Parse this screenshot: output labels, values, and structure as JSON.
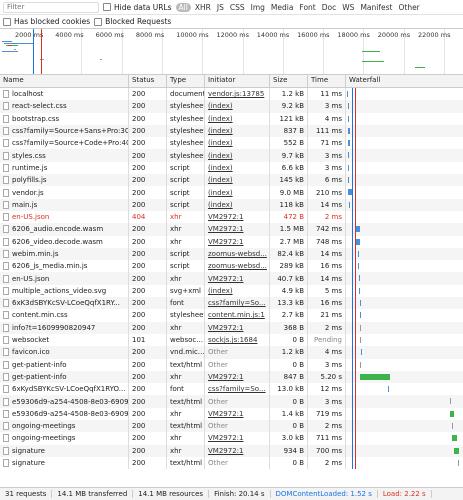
{
  "filter": {
    "placeholder": "Filter",
    "hide_data_urls": "Hide data URLs",
    "types": [
      "All",
      "XHR",
      "JS",
      "CSS",
      "Img",
      "Media",
      "Font",
      "Doc",
      "WS",
      "Manifest",
      "Other"
    ],
    "has_blocked_cookies": "Has blocked cookies",
    "blocked_requests": "Blocked Requests"
  },
  "overview": {
    "ticks": [
      "2000 ms",
      "4000 ms",
      "6000 ms",
      "8000 ms",
      "10000 ms",
      "12000 ms",
      "14000 ms",
      "16000 ms",
      "18000 ms",
      "20000 ms",
      "22000 ms"
    ]
  },
  "columns": {
    "name": "Name",
    "status": "Status",
    "type": "Type",
    "initiator": "Initiator",
    "size": "Size",
    "time": "Time",
    "waterfall": "Waterfall"
  },
  "requests": [
    {
      "name": "localhost",
      "status": "200",
      "type": "document",
      "initiator": "vendor.js:13785",
      "size": "1.2 kB",
      "time": "11 ms"
    },
    {
      "name": "react-select.css",
      "status": "200",
      "type": "stylesheet",
      "initiator": "(index)",
      "size": "9.2 kB",
      "time": "3 ms"
    },
    {
      "name": "bootstrap.css",
      "status": "200",
      "type": "stylesheet",
      "initiator": "(index)",
      "size": "121 kB",
      "time": "4 ms"
    },
    {
      "name": "css?family=Source+Sans+Pro:30...",
      "status": "200",
      "type": "stylesheet",
      "initiator": "(index)",
      "size": "837 B",
      "time": "111 ms"
    },
    {
      "name": "css?family=Source+Code+Pro:400",
      "status": "200",
      "type": "stylesheet",
      "initiator": "(index)",
      "size": "552 B",
      "time": "71 ms"
    },
    {
      "name": "styles.css",
      "status": "200",
      "type": "stylesheet",
      "initiator": "(index)",
      "size": "9.7 kB",
      "time": "3 ms"
    },
    {
      "name": "runtime.js",
      "status": "200",
      "type": "script",
      "initiator": "(index)",
      "size": "6.6 kB",
      "time": "3 ms"
    },
    {
      "name": "polyfills.js",
      "status": "200",
      "type": "script",
      "initiator": "(index)",
      "size": "145 kB",
      "time": "6 ms"
    },
    {
      "name": "vendor.js",
      "status": "200",
      "type": "script",
      "initiator": "(index)",
      "size": "9.0 MB",
      "time": "210 ms"
    },
    {
      "name": "main.js",
      "status": "200",
      "type": "script",
      "initiator": "(index)",
      "size": "118 kB",
      "time": "14 ms"
    },
    {
      "name": "en-US.json",
      "status": "404",
      "type": "xhr",
      "initiator": "VM2972:1",
      "size": "472 B",
      "time": "2 ms",
      "error": true
    },
    {
      "name": "6206_audio.encode.wasm",
      "status": "200",
      "type": "xhr",
      "initiator": "VM2972:1",
      "size": "1.5 MB",
      "time": "742 ms"
    },
    {
      "name": "6206_video.decode.wasm",
      "status": "200",
      "type": "xhr",
      "initiator": "VM2972:1",
      "size": "2.7 MB",
      "time": "748 ms"
    },
    {
      "name": "webim.min.js",
      "status": "200",
      "type": "script",
      "initiator": "zoomus-websd...",
      "size": "82.4 kB",
      "time": "14 ms"
    },
    {
      "name": "6206_js_media.min.js",
      "status": "200",
      "type": "script",
      "initiator": "zoomus-websd...",
      "size": "289 kB",
      "time": "16 ms"
    },
    {
      "name": "en-US.json",
      "status": "200",
      "type": "xhr",
      "initiator": "VM2972:1",
      "size": "40.7 kB",
      "time": "14 ms"
    },
    {
      "name": "multiple_actions_video.svg",
      "status": "200",
      "type": "svg+xml",
      "initiator": "(index)",
      "size": "4.9 kB",
      "time": "5 ms"
    },
    {
      "name": "6xK3dSBYKcSV-LCoeQqfX1RY...",
      "status": "200",
      "type": "font",
      "initiator": "css?family=So...",
      "size": "13.3 kB",
      "time": "16 ms"
    },
    {
      "name": "content.min.css",
      "status": "200",
      "type": "stylesheet",
      "initiator": "content.min.js:1",
      "size": "2.7 kB",
      "time": "21 ms"
    },
    {
      "name": "info?t=1609990820947",
      "status": "200",
      "type": "xhr",
      "initiator": "VM2972:1",
      "size": "368 B",
      "time": "2 ms"
    },
    {
      "name": "websocket",
      "status": "101",
      "type": "websoc...",
      "initiator": "sockjs.js:1684",
      "size": "0 B",
      "time": "Pending"
    },
    {
      "name": "favicon.ico",
      "status": "200",
      "type": "vnd.mic...",
      "initiator": "Other",
      "size": "1.2 kB",
      "time": "4 ms"
    },
    {
      "name": "get-patient-info",
      "status": "200",
      "type": "text/html",
      "initiator": "Other",
      "size": "0 B",
      "time": "3 ms"
    },
    {
      "name": "get-patient-info",
      "status": "200",
      "type": "xhr",
      "initiator": "VM2972:1",
      "size": "847 B",
      "time": "5.20 s"
    },
    {
      "name": "6xKydSBYKcSV-LCoeQqfX1RYO...",
      "status": "200",
      "type": "font",
      "initiator": "css?family=So...",
      "size": "13.0 kB",
      "time": "12 ms"
    },
    {
      "name": "e59306d9-a254-4508-8e03-6909...",
      "status": "200",
      "type": "text/html",
      "initiator": "Other",
      "size": "0 B",
      "time": "3 ms"
    },
    {
      "name": "e59306d9-a254-4508-8e03-6909...",
      "status": "200",
      "type": "xhr",
      "initiator": "VM2972:1",
      "size": "1.4 kB",
      "time": "719 ms"
    },
    {
      "name": "ongoing-meetings",
      "status": "200",
      "type": "text/html",
      "initiator": "Other",
      "size": "0 B",
      "time": "2 ms"
    },
    {
      "name": "ongoing-meetings",
      "status": "200",
      "type": "xhr",
      "initiator": "VM2972:1",
      "size": "3.0 kB",
      "time": "711 ms"
    },
    {
      "name": "signature",
      "status": "200",
      "type": "xhr",
      "initiator": "VM2972:1",
      "size": "934 B",
      "time": "700 ms"
    },
    {
      "name": "signature",
      "status": "200",
      "type": "text/html",
      "initiator": "Other",
      "size": "0 B",
      "time": "2 ms"
    }
  ],
  "summary": {
    "requests": "31 requests",
    "transferred": "14.1 MB transferred",
    "resources": "14.1 MB resources",
    "finish": "Finish: 20.14 s",
    "dcl": "DOMContentLoaded: 1.52 s",
    "load": "Load: 2.22 s"
  },
  "colors": {
    "dcl": "#1a73e8",
    "load": "#d93025",
    "bar_blue": "#4a90d9",
    "bar_green": "#3cb44b",
    "bar_gray": "#999999"
  }
}
